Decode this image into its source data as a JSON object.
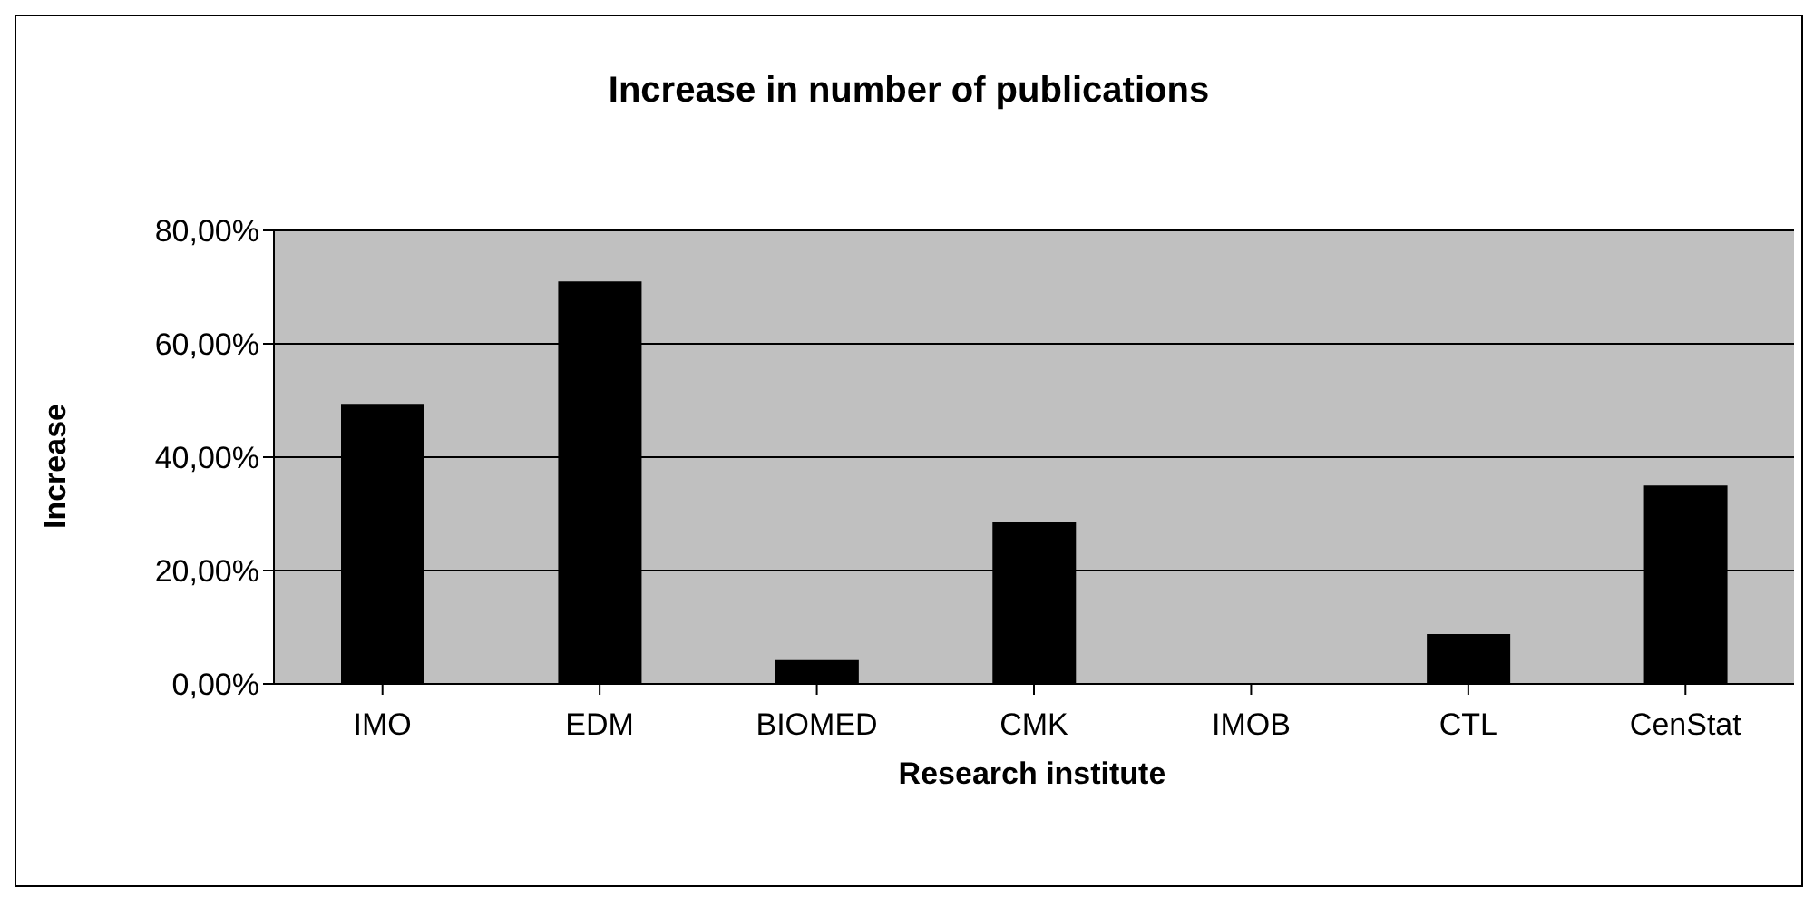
{
  "chart_data": {
    "type": "bar",
    "title": "Increase in number of publications",
    "xlabel": "Research institute",
    "ylabel": "Increase",
    "categories": [
      "IMO",
      "EDM",
      "BIOMED",
      "CMK",
      "IMOB",
      "CTL",
      "CenStat"
    ],
    "values": [
      49.4,
      71.0,
      4.2,
      28.5,
      0,
      8.8,
      35.0
    ],
    "color": "#000000",
    "ylim": [
      0,
      80
    ],
    "yticks": [
      {
        "value": 0,
        "label": "0,00%"
      },
      {
        "value": 20,
        "label": "20,00%"
      },
      {
        "value": 40,
        "label": "40,00%"
      },
      {
        "value": 60,
        "label": "60,00%"
      },
      {
        "value": 80,
        "label": "80,00%"
      }
    ],
    "grid": "y",
    "legend": false
  }
}
